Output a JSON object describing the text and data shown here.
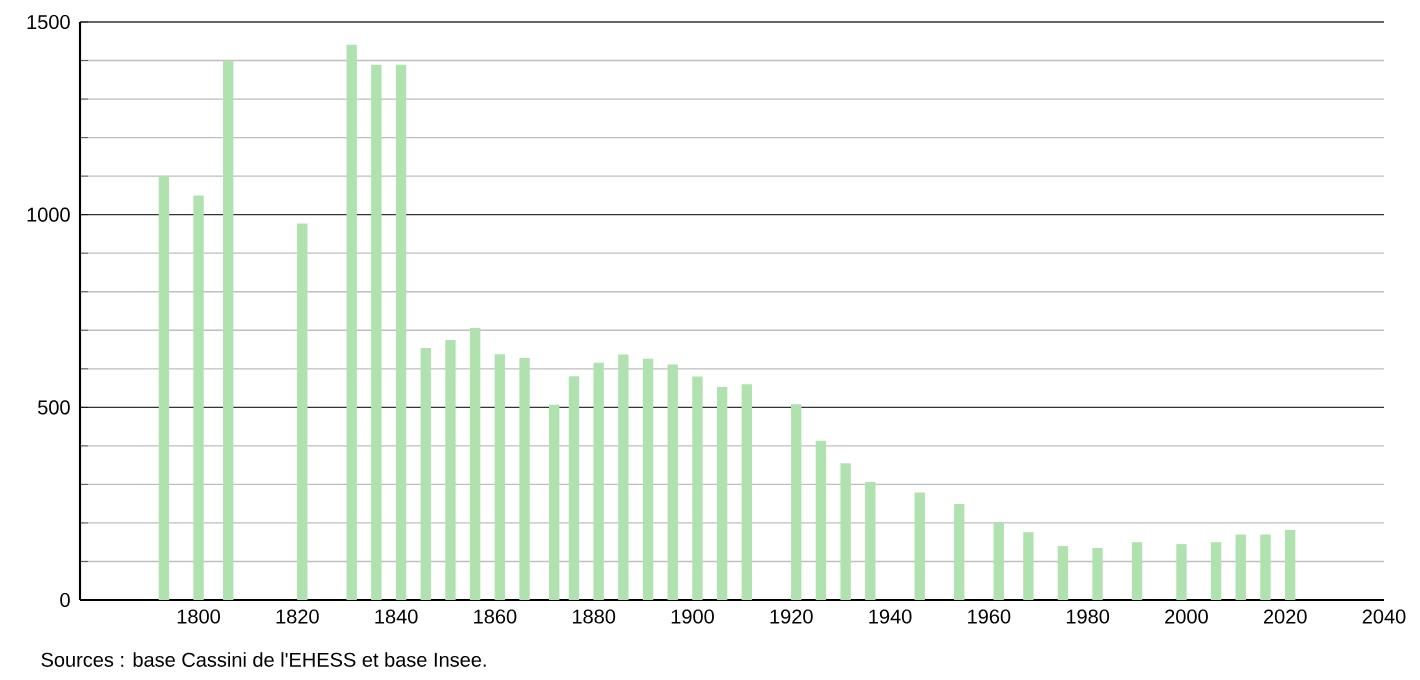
{
  "chart_data": {
    "type": "bar",
    "x": [
      1793,
      1800,
      1806,
      1821,
      1831,
      1836,
      1841,
      1846,
      1851,
      1856,
      1861,
      1866,
      1872,
      1876,
      1881,
      1886,
      1891,
      1896,
      1901,
      1906,
      1911,
      1921,
      1926,
      1931,
      1936,
      1946,
      1954,
      1962,
      1968,
      1975,
      1982,
      1990,
      1999,
      2006,
      2011,
      2016,
      2021
    ],
    "values": [
      1100,
      1050,
      1400,
      977,
      1441,
      1389,
      1389,
      654,
      675,
      706,
      638,
      628,
      507,
      581,
      616,
      637,
      626,
      611,
      580,
      553,
      560,
      508,
      413,
      355,
      306,
      279,
      249,
      201,
      176,
      140,
      135,
      150,
      145,
      150,
      170,
      170,
      182
    ],
    "color": "#b0e2b0",
    "xlim": [
      1776,
      2040
    ],
    "xticks": [
      1800,
      1820,
      1840,
      1860,
      1880,
      1900,
      1920,
      1940,
      1960,
      1980,
      2000,
      2020,
      2040
    ],
    "ylim": [
      0,
      1500
    ],
    "yticks": [
      0,
      {
        "value": 100,
        "label": null
      },
      {
        "value": 200,
        "label": null
      },
      {
        "value": 300,
        "label": null
      },
      {
        "value": 400,
        "label": null
      },
      500,
      {
        "value": 600,
        "label": null
      },
      {
        "value": 700,
        "label": null
      },
      {
        "value": 800,
        "label": null
      },
      {
        "value": 900,
        "label": null
      },
      1000,
      {
        "value": 1100,
        "label": null
      },
      {
        "value": 1200,
        "label": null
      },
      {
        "value": 1300,
        "label": null
      },
      {
        "value": 1400,
        "label": null
      },
      1500
    ],
    "grid": "y",
    "annotations": [
      "Sources : base Cassini de l'EHESS et base Insee."
    ]
  }
}
